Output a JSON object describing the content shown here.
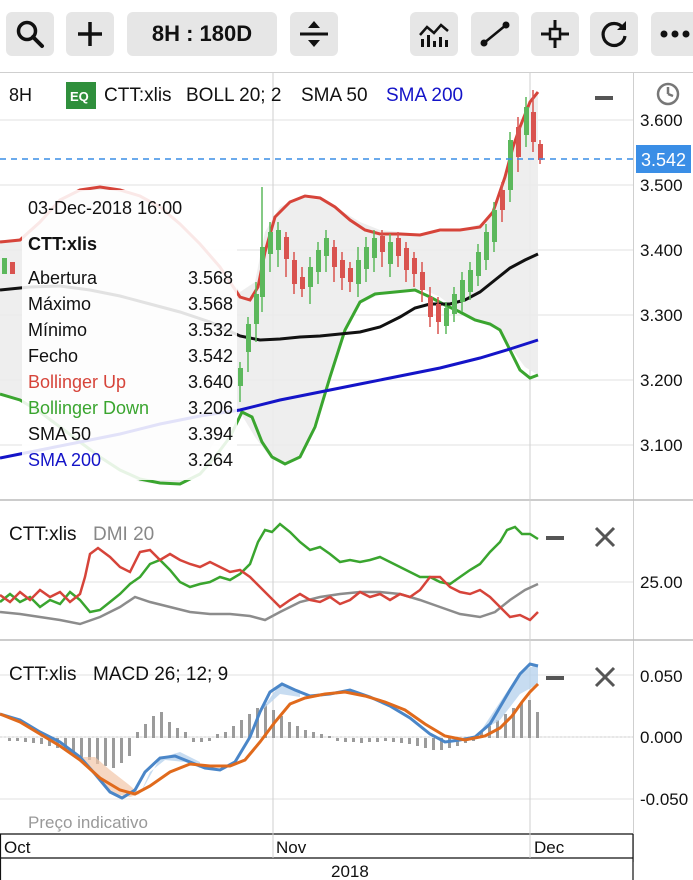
{
  "toolbar": {
    "period_label": "8H : 180D"
  },
  "main_panel": {
    "interval": "8H",
    "eq_badge": "EQ",
    "symbol": "CTT:xlis",
    "ind_boll": "BOLL 20; 2",
    "ind_sma50": "SMA 50",
    "ind_sma200": "SMA 200",
    "last_price": "3.542",
    "y_ticks": [
      "3.600",
      "3.500",
      "3.400",
      "3.300",
      "3.200",
      "3.100"
    ]
  },
  "tooltip": {
    "date": "03-Dec-2018 16:00",
    "symbol": "CTT:xlis",
    "rows": [
      {
        "label": "Abertura",
        "value": "3.568",
        "color": "#111111"
      },
      {
        "label": "Máximo",
        "value": "3.568",
        "color": "#111111"
      },
      {
        "label": "Mínimo",
        "value": "3.532",
        "color": "#111111"
      },
      {
        "label": "Fecho",
        "value": "3.542",
        "color": "#111111"
      },
      {
        "label": "Bollinger Up",
        "value": "3.640",
        "color": "#d6443a"
      },
      {
        "label": "Bollinger Down",
        "value": "3.206",
        "color": "#3aa52f"
      },
      {
        "label": "SMA 50",
        "value": "3.394",
        "color": "#111111"
      },
      {
        "label": "SMA 200",
        "value": "3.264",
        "color": "#1414c8"
      }
    ]
  },
  "dmi_panel": {
    "symbol": "CTT:xlis",
    "indicator": "DMI 20",
    "y_tick": "25.00"
  },
  "macd_panel": {
    "symbol": "CTT:xlis",
    "indicator": "MACD 26; 12; 9",
    "y_ticks": [
      "0.050",
      "0.000",
      "-0.050"
    ],
    "footnote": "Preço indicativo"
  },
  "x_axis": {
    "months": [
      "Oct",
      "Nov",
      "Dec"
    ],
    "year": "2018"
  },
  "colors": {
    "bollinger": "#d6443a",
    "bollinger_down": "#3aa52f",
    "sma50": "#111111",
    "sma200": "#1414c8",
    "macd": "#4a86c8",
    "signal": "#e06a1c",
    "candle_up": "#5cb85c",
    "candle_down": "#d9534f",
    "last_price_badge": "#3a8ee6"
  },
  "icons": [
    "search-icon",
    "plus-icon",
    "expand-vertical-icon",
    "chart-type-icon",
    "trendline-icon",
    "crosshair-icon",
    "refresh-icon",
    "more-icon",
    "minimize-icon",
    "close-icon",
    "clock-icon"
  ]
}
